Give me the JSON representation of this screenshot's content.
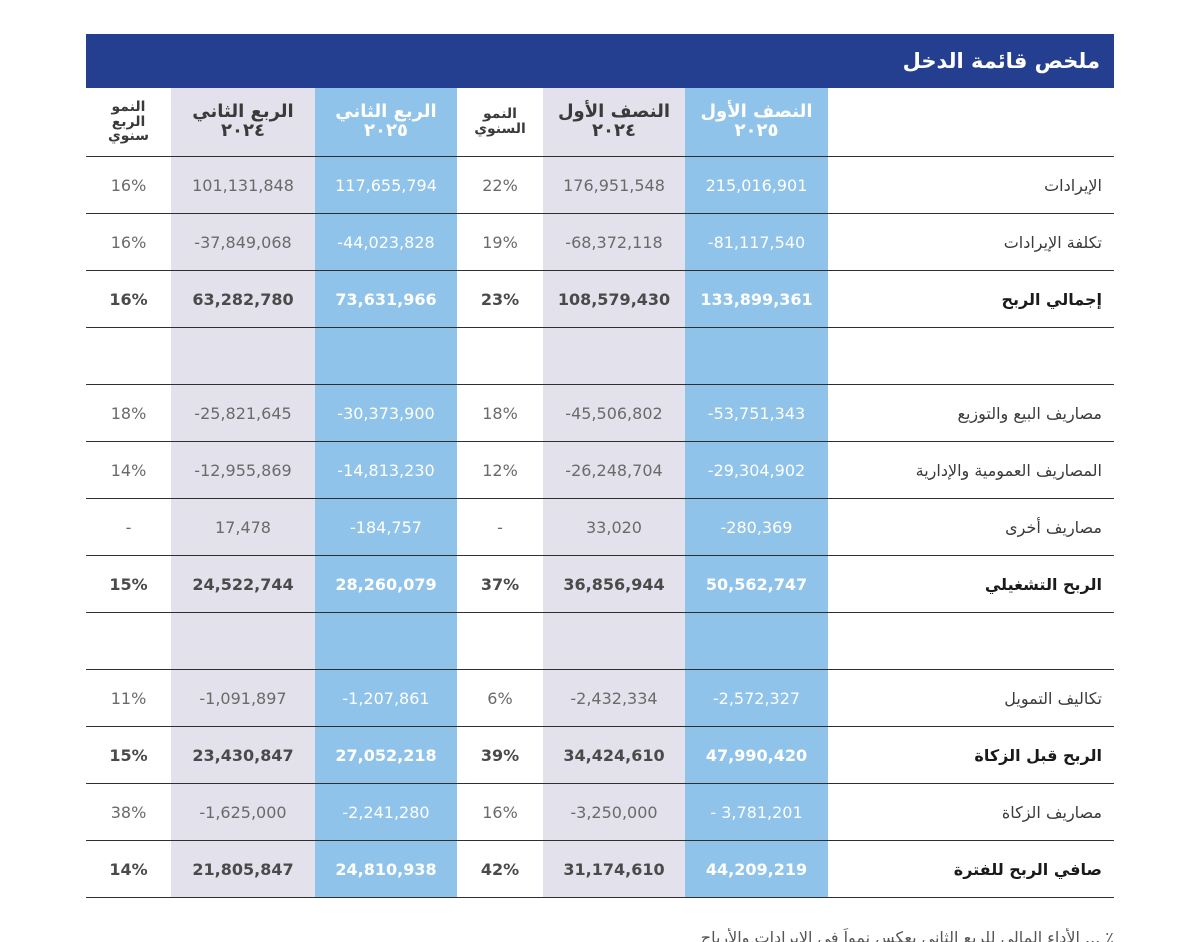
{
  "title": "ملخص قائمة الدخل",
  "headers": {
    "yoy_q_line1": "النمو",
    "yoy_q_line2": "الربع",
    "yoy_q_line3": "سنوي",
    "q2_2024_a": "الربع الثاني",
    "q2_2024_b": "٢٠٢٤",
    "q2_2025_a": "الربع الثاني",
    "q2_2025_b": "٢٠٢٥",
    "yoy_h_line1": "النمو",
    "yoy_h_line2": "السنوي",
    "h1_2024_a": "النصف الأول",
    "h1_2024_b": "٢٠٢٤",
    "h1_2025_a": "النصف الأول",
    "h1_2025_b": "٢٠٢٥"
  },
  "rows": [
    {
      "label": "الإيرادات",
      "yoy_q": "16%",
      "q2_2024": "101,131,848",
      "q2_2025": "117,655,794",
      "yoy_h": "22%",
      "h1_2024": "176,951,548",
      "h1_2025": "215,016,901"
    },
    {
      "label": "تكلفة الإيرادات",
      "yoy_q": "16%",
      "q2_2024": "-37,849,068",
      "q2_2025": "-44,023,828",
      "yoy_h": "19%",
      "h1_2024": "-68,372,118",
      "h1_2025": "-81,117,540"
    },
    {
      "label": "إجمالي الربح",
      "yoy_q": "16%",
      "q2_2024": "63,282,780",
      "q2_2025": "73,631,966",
      "yoy_h": "23%",
      "h1_2024": "108,579,430",
      "h1_2025": "133,899,361"
    },
    {
      "label": "",
      "yoy_q": "",
      "q2_2024": "",
      "q2_2025": "",
      "yoy_h": "",
      "h1_2024": "",
      "h1_2025": ""
    },
    {
      "label": "مصاريف البيع والتوزيع",
      "yoy_q": "18%",
      "q2_2024": "-25,821,645",
      "q2_2025": "-30,373,900",
      "yoy_h": "18%",
      "h1_2024": "-45,506,802",
      "h1_2025": "-53,751,343"
    },
    {
      "label": "المصاريف العمومية والإدارية",
      "yoy_q": "14%",
      "q2_2024": "-12,955,869",
      "q2_2025": "-14,813,230",
      "yoy_h": "12%",
      "h1_2024": "-26,248,704",
      "h1_2025": "-29,304,902"
    },
    {
      "label": "مصاريف أخرى",
      "yoy_q": "-",
      "q2_2024": "17,478",
      "q2_2025": "-184,757",
      "yoy_h": "-",
      "h1_2024": "33,020",
      "h1_2025": "-280,369"
    },
    {
      "label": "الربح التشغيلي",
      "yoy_q": "15%",
      "q2_2024": "24,522,744",
      "q2_2025": "28,260,079",
      "yoy_h": "37%",
      "h1_2024": "36,856,944",
      "h1_2025": "50,562,747"
    },
    {
      "label": "",
      "yoy_q": "",
      "q2_2024": "",
      "q2_2025": "",
      "yoy_h": "",
      "h1_2024": "",
      "h1_2025": ""
    },
    {
      "label": "تكاليف التمويل",
      "yoy_q": "11%",
      "q2_2024": "-1,091,897",
      "q2_2025": "-1,207,861",
      "yoy_h": "6%",
      "h1_2024": "-2,432,334",
      "h1_2025": "-2,572,327"
    },
    {
      "label": "الربح قبل الزكاة",
      "yoy_q": "15%",
      "q2_2024": "23,430,847",
      "q2_2025": "27,052,218",
      "yoy_h": "39%",
      "h1_2024": "34,424,610",
      "h1_2025": "47,990,420"
    },
    {
      "label": "مصاريف الزكاة",
      "yoy_q": "38%",
      "q2_2024": "-1,625,000",
      "q2_2025": "-2,241,280",
      "yoy_h": "16%",
      "h1_2024": "-3,250,000",
      "h1_2025": "- 3,781,201"
    },
    {
      "label": "صافي الربح للفترة",
      "yoy_q": "14%",
      "q2_2024": "21,805,847",
      "q2_2025": "24,810,938",
      "yoy_h": "42%",
      "h1_2024": "31,174,610",
      "h1_2025": "44,209,219"
    }
  ],
  "footer_partial": "٪ ... الأداء المالي للربع الثاني يعكس نمواً في الإيرادات والأرباح"
}
